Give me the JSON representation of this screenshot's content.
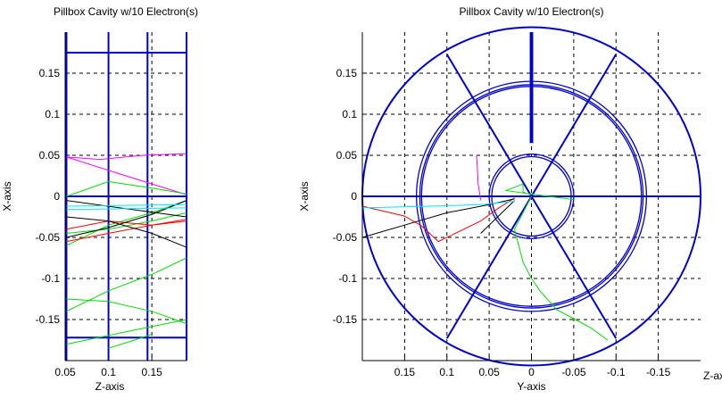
{
  "chart_data": [
    {
      "type": "line",
      "title": "Pillbox Cavity w/10 Electron(s)",
      "xlabel": "Z-axis",
      "ylabel": "X-axis",
      "xlim": [
        0.05,
        0.19
      ],
      "ylim": [
        -0.2,
        0.2
      ],
      "x_ticks": [
        0.05,
        0.1,
        0.15
      ],
      "x_tick_labels": [
        "0.05",
        "0.1",
        "0.15"
      ],
      "y_ticks": [
        0.15,
        0.1,
        0.05,
        0,
        -0.05,
        -0.1,
        -0.15
      ],
      "y_tick_labels": [
        "0.15",
        "0.1",
        "0.05",
        "0",
        "-0.05",
        "-0.1",
        "-0.15"
      ],
      "grid": true,
      "colors": {
        "structure": "#0000cc",
        "grid": "#000000",
        "axes": "#000000"
      },
      "structure": [
        {
          "x": [
            0.0515,
            0.0515
          ],
          "y": [
            -0.2,
            0.2
          ]
        },
        {
          "x": [
            0.1,
            0.1
          ],
          "y": [
            -0.2,
            0.2
          ]
        },
        {
          "x": [
            0.145,
            0.145
          ],
          "y": [
            -0.2,
            0.2
          ]
        },
        {
          "x": [
            0.19,
            0.19
          ],
          "y": [
            -0.2,
            0.2
          ]
        },
        {
          "x": [
            0.0515,
            0.19
          ],
          "y": [
            0.175,
            0.175
          ]
        },
        {
          "x": [
            0.0515,
            0.19
          ],
          "y": [
            -0.172,
            -0.172
          ]
        },
        {
          "x": [
            0.0515,
            0.19
          ],
          "y": [
            0.0,
            0.0
          ]
        }
      ],
      "series": [
        {
          "color": "#ff00ff",
          "x": [
            0.0515,
            0.09,
            0.14,
            0.19
          ],
          "y": [
            0.048,
            0.045,
            0.05,
            0.052
          ]
        },
        {
          "color": "#ff00ff",
          "x": [
            0.0515,
            0.12,
            0.19
          ],
          "y": [
            0.048,
            0.025,
            0.002
          ]
        },
        {
          "color": "#00dd00",
          "x": [
            0.0515,
            0.1,
            0.15,
            0.19
          ],
          "y": [
            0.0,
            0.018,
            0.01,
            0.003
          ]
        },
        {
          "color": "#00dd00",
          "x": [
            0.0515,
            0.1,
            0.15,
            0.19
          ],
          "y": [
            -0.045,
            -0.04,
            -0.03,
            -0.02
          ]
        },
        {
          "color": "#00dd00",
          "x": [
            0.0515,
            0.1,
            0.15,
            0.19
          ],
          "y": [
            -0.06,
            -0.035,
            -0.02,
            -0.005
          ]
        },
        {
          "color": "#00dd00",
          "x": [
            0.0515,
            0.1,
            0.15,
            0.19
          ],
          "y": [
            -0.14,
            -0.115,
            -0.095,
            -0.075
          ]
        },
        {
          "color": "#00dd00",
          "x": [
            0.0515,
            0.1,
            0.15,
            0.19
          ],
          "y": [
            -0.125,
            -0.128,
            -0.14,
            -0.155
          ]
        },
        {
          "color": "#00dd00",
          "x": [
            0.0515,
            0.12,
            0.19
          ],
          "y": [
            -0.18,
            -0.165,
            -0.15
          ]
        },
        {
          "color": "#00dd00",
          "x": [
            0.1,
            0.13,
            0.15
          ],
          "y": [
            -0.185,
            -0.175,
            -0.168
          ]
        },
        {
          "color": "#ff0000",
          "x": [
            0.0515,
            0.1,
            0.15,
            0.19
          ],
          "y": [
            -0.055,
            -0.045,
            -0.035,
            -0.028
          ]
        },
        {
          "color": "#ff0000",
          "x": [
            0.0515,
            0.1,
            0.15,
            0.19
          ],
          "y": [
            -0.04,
            -0.03,
            -0.035,
            -0.03
          ]
        },
        {
          "color": "#000000",
          "x": [
            0.0515,
            0.1,
            0.15,
            0.19
          ],
          "y": [
            -0.05,
            -0.038,
            -0.022,
            -0.005
          ]
        },
        {
          "color": "#000000",
          "x": [
            0.0515,
            0.1,
            0.15,
            0.19
          ],
          "y": [
            -0.025,
            -0.03,
            -0.045,
            -0.062
          ]
        },
        {
          "color": "#000000",
          "x": [
            0.0515,
            0.12,
            0.19
          ],
          "y": [
            -0.005,
            -0.015,
            -0.025
          ]
        },
        {
          "color": "#00e5ff",
          "x": [
            0.0515,
            0.12,
            0.19
          ],
          "y": [
            -0.012,
            -0.011,
            -0.01
          ]
        },
        {
          "color": "#00e5ff",
          "x": [
            0.0515,
            0.12,
            0.19
          ],
          "y": [
            -0.016,
            -0.015,
            -0.014
          ]
        }
      ]
    },
    {
      "type": "line",
      "title": "Pillbox Cavity w/10 Electron(s)",
      "xlabel": "Y-axis",
      "ylabel": "X-axis",
      "zlabel": "Z-axis",
      "xlim": [
        0.2,
        -0.2
      ],
      "ylim": [
        -0.2,
        0.2
      ],
      "x_ticks": [
        0.15,
        0.1,
        0.05,
        0,
        -0.05,
        -0.1,
        -0.15
      ],
      "x_tick_labels": [
        "0.15",
        "0.1",
        "0.05",
        "0",
        "-0.05",
        "-0.1",
        "-0.15"
      ],
      "y_ticks": [
        0.15,
        0.1,
        0.05,
        0,
        -0.05,
        -0.1,
        -0.15
      ],
      "y_tick_labels": [
        "0.15",
        "0.1",
        "0.05",
        "0",
        "-0.05",
        "-0.1",
        "-0.15"
      ],
      "grid": true,
      "colors": {
        "structure": "#0000cc",
        "grid": "#000000",
        "axes": "#000000"
      },
      "circles": [
        0.2,
        0.136,
        0.13,
        0.132,
        0.05,
        0.047
      ],
      "spokes": [
        {
          "x": [
            0.1,
            -0.1
          ],
          "y": [
            0.173,
            -0.173
          ]
        },
        {
          "x": [
            -0.1,
            0.1
          ],
          "y": [
            0.173,
            -0.173
          ]
        },
        {
          "x": [
            0.2,
            -0.2
          ],
          "y": [
            0.0,
            0.0
          ]
        },
        {
          "x": [
            0.001,
            0.001
          ],
          "y": [
            0.2,
            0.065
          ]
        },
        {
          "x": [
            -0.001,
            -0.001
          ],
          "y": [
            0.2,
            0.065
          ]
        }
      ],
      "series": [
        {
          "color": "#ff00ff",
          "x": [
            0.06,
            0.063,
            0.064,
            0.065
          ],
          "y": [
            -0.005,
            0.015,
            0.035,
            0.05
          ]
        },
        {
          "color": "#00dd00",
          "x": [
            0.0,
            0.01,
            0.01,
            0.03,
            -0.02,
            -0.05
          ],
          "y": [
            0.002,
            0.005,
            0.015,
            0.007,
            0.0,
            -0.004
          ]
        },
        {
          "color": "#00dd00",
          "x": [
            0.0,
            0.02,
            0.01,
            0.0,
            -0.01,
            -0.03,
            -0.07,
            -0.09
          ],
          "y": [
            0.0,
            -0.04,
            -0.08,
            -0.1,
            -0.115,
            -0.138,
            -0.16,
            -0.175
          ]
        },
        {
          "color": "#ff0000",
          "x": [
            0.2,
            0.15,
            0.13,
            0.11,
            0.08,
            0.06,
            0.04,
            0.02
          ],
          "y": [
            -0.012,
            -0.024,
            -0.036,
            -0.055,
            -0.04,
            -0.03,
            -0.015,
            -0.002
          ]
        },
        {
          "color": "#000000",
          "x": [
            0.2,
            0.15,
            0.1,
            0.05,
            0.02
          ],
          "y": [
            -0.05,
            -0.035,
            -0.02,
            -0.01,
            -0.003
          ]
        },
        {
          "color": "#000000",
          "x": [
            0.06,
            0.04,
            0.02
          ],
          "y": [
            -0.045,
            -0.025,
            -0.005
          ]
        },
        {
          "color": "#00e5ff",
          "x": [
            0.2,
            0.12,
            0.06,
            0.02
          ],
          "y": [
            -0.014,
            -0.012,
            -0.01,
            -0.006
          ]
        }
      ]
    }
  ]
}
